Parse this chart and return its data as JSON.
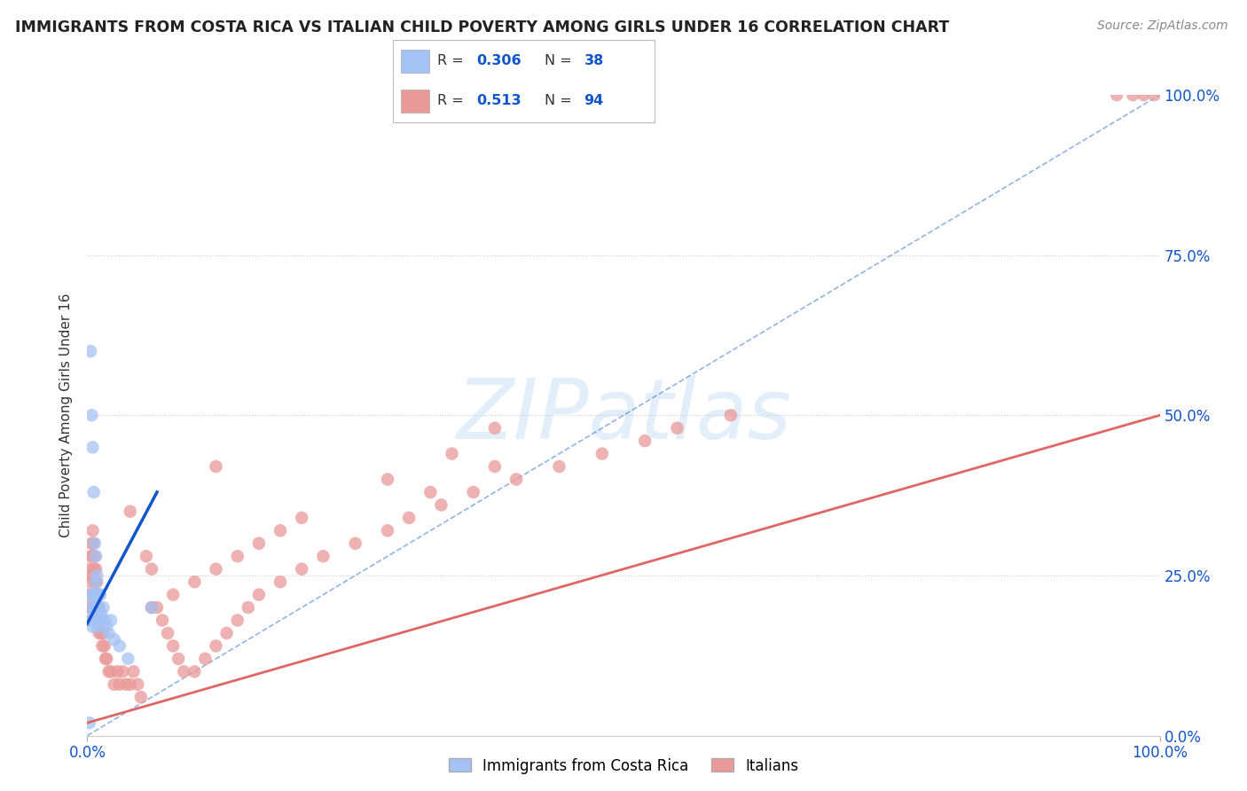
{
  "title": "IMMIGRANTS FROM COSTA RICA VS ITALIAN CHILD POVERTY AMONG GIRLS UNDER 16 CORRELATION CHART",
  "source": "Source: ZipAtlas.com",
  "ylabel": "Child Poverty Among Girls Under 16",
  "watermark": "ZIPatlas",
  "blue_color": "#a4c2f4",
  "pink_color": "#ea9999",
  "blue_line_color": "#1155cc",
  "pink_line_color": "#e06666",
  "axis_label_color": "#1155cc",
  "xlim": [
    0.0,
    1.0
  ],
  "ylim": [
    0.0,
    1.0
  ],
  "ytick_values": [
    0.0,
    0.25,
    0.5,
    0.75,
    1.0
  ],
  "ytick_labels_right": [
    "0.0%",
    "25.0%",
    "50.0%",
    "75.0%",
    "100.0%"
  ],
  "xtick_values": [
    0.0,
    1.0
  ],
  "xtick_labels": [
    "0.0%",
    "100.0%"
  ],
  "blue_scatter_x": [
    0.002,
    0.003,
    0.003,
    0.004,
    0.004,
    0.005,
    0.005,
    0.005,
    0.006,
    0.006,
    0.006,
    0.007,
    0.007,
    0.007,
    0.008,
    0.008,
    0.008,
    0.008,
    0.009,
    0.009,
    0.009,
    0.01,
    0.01,
    0.01,
    0.011,
    0.011,
    0.012,
    0.013,
    0.014,
    0.015,
    0.016,
    0.018,
    0.02,
    0.022,
    0.025,
    0.03,
    0.038,
    0.06
  ],
  "blue_scatter_y": [
    0.02,
    0.6,
    0.18,
    0.5,
    0.22,
    0.45,
    0.2,
    0.17,
    0.38,
    0.22,
    0.2,
    0.3,
    0.22,
    0.19,
    0.28,
    0.24,
    0.21,
    0.18,
    0.25,
    0.22,
    0.2,
    0.22,
    0.2,
    0.17,
    0.22,
    0.18,
    0.22,
    0.19,
    0.18,
    0.2,
    0.18,
    0.17,
    0.16,
    0.18,
    0.15,
    0.14,
    0.12,
    0.2
  ],
  "pink_scatter_x": [
    0.001,
    0.002,
    0.002,
    0.003,
    0.003,
    0.003,
    0.004,
    0.004,
    0.004,
    0.005,
    0.005,
    0.005,
    0.006,
    0.006,
    0.006,
    0.007,
    0.007,
    0.007,
    0.008,
    0.008,
    0.008,
    0.009,
    0.009,
    0.01,
    0.01,
    0.011,
    0.011,
    0.012,
    0.013,
    0.014,
    0.015,
    0.016,
    0.017,
    0.018,
    0.02,
    0.022,
    0.025,
    0.028,
    0.03,
    0.033,
    0.036,
    0.04,
    0.043,
    0.047,
    0.05,
    0.055,
    0.06,
    0.065,
    0.07,
    0.075,
    0.08,
    0.085,
    0.09,
    0.1,
    0.11,
    0.12,
    0.13,
    0.14,
    0.15,
    0.16,
    0.18,
    0.2,
    0.22,
    0.25,
    0.28,
    0.3,
    0.33,
    0.36,
    0.4,
    0.44,
    0.48,
    0.52,
    0.12,
    0.55,
    0.6,
    0.04,
    0.32,
    0.38,
    0.06,
    0.08,
    0.1,
    0.12,
    0.14,
    0.16,
    0.18,
    0.2,
    0.28,
    0.34,
    0.38,
    0.96,
    0.975,
    0.985,
    0.995
  ],
  "pink_scatter_y": [
    0.22,
    0.26,
    0.2,
    0.28,
    0.24,
    0.18,
    0.3,
    0.25,
    0.2,
    0.32,
    0.28,
    0.22,
    0.3,
    0.26,
    0.22,
    0.28,
    0.24,
    0.2,
    0.26,
    0.22,
    0.18,
    0.24,
    0.2,
    0.22,
    0.18,
    0.2,
    0.16,
    0.18,
    0.16,
    0.14,
    0.16,
    0.14,
    0.12,
    0.12,
    0.1,
    0.1,
    0.08,
    0.1,
    0.08,
    0.1,
    0.08,
    0.08,
    0.1,
    0.08,
    0.06,
    0.28,
    0.26,
    0.2,
    0.18,
    0.16,
    0.14,
    0.12,
    0.1,
    0.1,
    0.12,
    0.14,
    0.16,
    0.18,
    0.2,
    0.22,
    0.24,
    0.26,
    0.28,
    0.3,
    0.32,
    0.34,
    0.36,
    0.38,
    0.4,
    0.42,
    0.44,
    0.46,
    0.42,
    0.48,
    0.5,
    0.35,
    0.38,
    0.42,
    0.2,
    0.22,
    0.24,
    0.26,
    0.28,
    0.3,
    0.32,
    0.34,
    0.4,
    0.44,
    0.48,
    1.0,
    1.0,
    1.0,
    1.0
  ],
  "blue_trend_x": [
    0.0,
    0.065
  ],
  "blue_trend_y": [
    0.175,
    0.38
  ],
  "pink_trend_x": [
    0.0,
    1.0
  ],
  "pink_trend_y": [
    0.02,
    0.5
  ],
  "diag_line_x": [
    0.0,
    1.0
  ],
  "diag_line_y": [
    0.0,
    1.0
  ],
  "background_color": "#ffffff",
  "grid_color": "#cccccc",
  "grid_linestyle": "dotted"
}
